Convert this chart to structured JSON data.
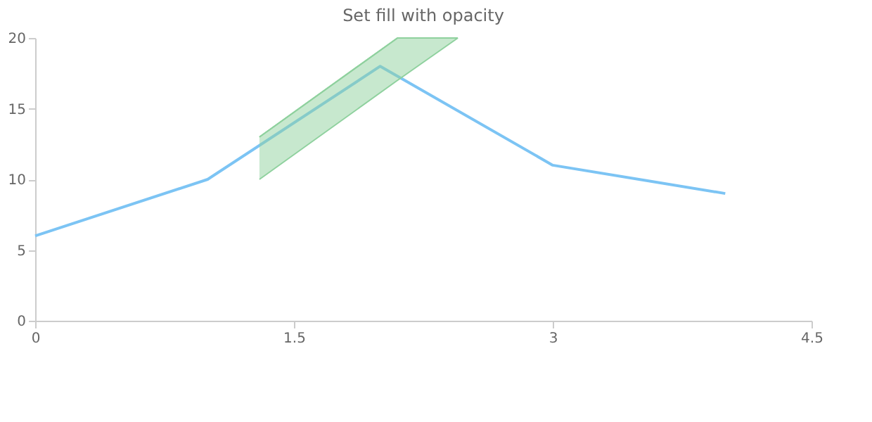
{
  "chart_data": {
    "type": "line",
    "title": "Set fill with opacity",
    "xlim": [
      0,
      4.5
    ],
    "xticks": [
      0,
      1.5,
      3,
      4.5
    ],
    "ylim": [
      0,
      20
    ],
    "yticks": [
      0,
      5,
      10,
      15,
      20
    ],
    "grid": false,
    "series": [
      {
        "color": "#7cc4f4",
        "x": [
          0,
          1,
          2,
          3,
          4
        ],
        "values": [
          6,
          10,
          18,
          11,
          9
        ]
      },
      {
        "type": "line",
        "color": "#8fd19e",
        "x": [
          1.3,
          2.1,
          2.45
        ],
        "values": [
          13,
          20,
          20
        ],
        "lower": [
          10,
          17,
          20
        ],
        "upper": [
          13,
          20,
          20
        ]
      }
    ]
  }
}
